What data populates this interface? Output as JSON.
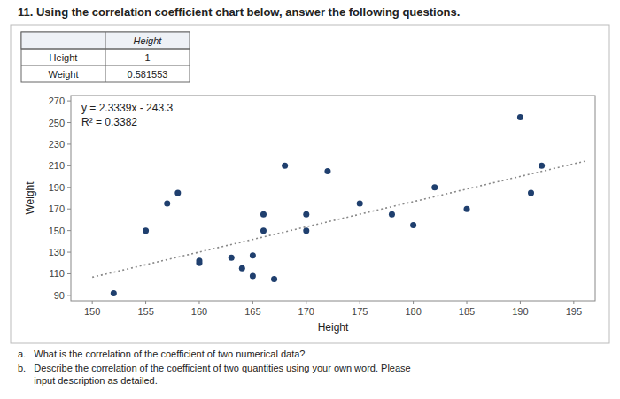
{
  "chart_data": {
    "type": "scatter",
    "title": "11.  Using the correlation coefficient chart below, answer the following questions.",
    "xlabel": "Height",
    "ylabel": "Weight",
    "series": [
      {
        "type": "scatter",
        "color": "#1f3f6e",
        "marker": "circle",
        "x": [
          152,
          155,
          157,
          158,
          160,
          160,
          163,
          164,
          165,
          165,
          166,
          166,
          167,
          168,
          170,
          170,
          172,
          175,
          178,
          180,
          182,
          185,
          190,
          191,
          192
        ],
        "values": [
          92,
          150,
          175,
          185,
          120,
          122,
          125,
          115,
          108,
          127,
          150,
          165,
          105,
          210,
          150,
          165,
          205,
          175,
          165,
          155,
          190,
          170,
          255,
          185,
          210
        ]
      },
      {
        "type": "line",
        "color": "#888888",
        "line_style": "dotted",
        "x": [
          150,
          196
        ],
        "values": [
          106.785,
          214.1444
        ]
      }
    ],
    "xlim": [
      148,
      197
    ],
    "ylim": [
      85,
      275
    ],
    "xticks": [
      150,
      155,
      160,
      165,
      170,
      175,
      180,
      185,
      190,
      195
    ],
    "yticks": [
      90,
      110,
      130,
      150,
      170,
      190,
      210,
      230,
      250,
      270
    ],
    "grid": false,
    "annotations": [
      "y = 2.3339x - 243.3",
      "R² = 0.3382"
    ],
    "table": {
      "header": "Height",
      "rows": [
        [
          "Height",
          "1"
        ],
        [
          "Weight",
          "0.581553"
        ]
      ]
    },
    "questions": [
      "a.   What is the correlation of the coefficient of two numerical data?",
      "b.   Describe the correlation of the coefficient of two quantities using your own word. Please\n      input description as detailed."
    ]
  }
}
